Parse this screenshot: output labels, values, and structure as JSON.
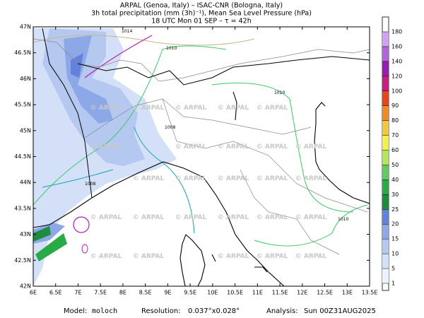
{
  "header": {
    "line1": "ARPAL (Genoa, Italy)  –  ISAC-CNR (Bologna, Italy)",
    "line2": "3h total precipitation (mm (3h)⁻¹), Mean Sea Level Pressure (hPa)",
    "line3": "18 UTC Mon 01 SEP  –  τ = 42h"
  },
  "map": {
    "lon_labels": [
      "6E",
      "6.5E",
      "7E",
      "7.5E",
      "8E",
      "8.5E",
      "9E",
      "9.5E",
      "10E",
      "10.5E",
      "11E",
      "11.5E",
      "12E",
      "12.5E",
      "13E",
      "13.5E"
    ],
    "lat_labels": [
      "42N",
      "42.5N",
      "43N",
      "43.5N",
      "44N",
      "44.5N",
      "45N",
      "45.5N",
      "46N",
      "46.5N",
      "47N"
    ],
    "isobar_labels": [
      "1014",
      "1010",
      "1010",
      "1008",
      "1008",
      "1010"
    ],
    "watermark": "© ARPAL"
  },
  "colorbar": {
    "levels": [
      1,
      5,
      10,
      15,
      20,
      25,
      30,
      40,
      50,
      60,
      70,
      80,
      90,
      100,
      120,
      140,
      160,
      180
    ],
    "colors": [
      "#eef2fb",
      "#d4e0f8",
      "#b4c8f0",
      "#8ca8e6",
      "#6482dc",
      "#1e8c3c",
      "#28aa46",
      "#64c864",
      "#b4e65a",
      "#f0f050",
      "#f0c83c",
      "#f08c28",
      "#e6461e",
      "#c81e82",
      "#961eb4",
      "#b464dc",
      "#d2a0f0"
    ]
  },
  "footer": {
    "model_label": "Model:",
    "model": "moloch",
    "resolution_label": "Resolution:",
    "resolution": "0.037°x0.028°",
    "analysis_label": "Analysis:",
    "analysis": "Sun 00Z31AUG2025"
  }
}
